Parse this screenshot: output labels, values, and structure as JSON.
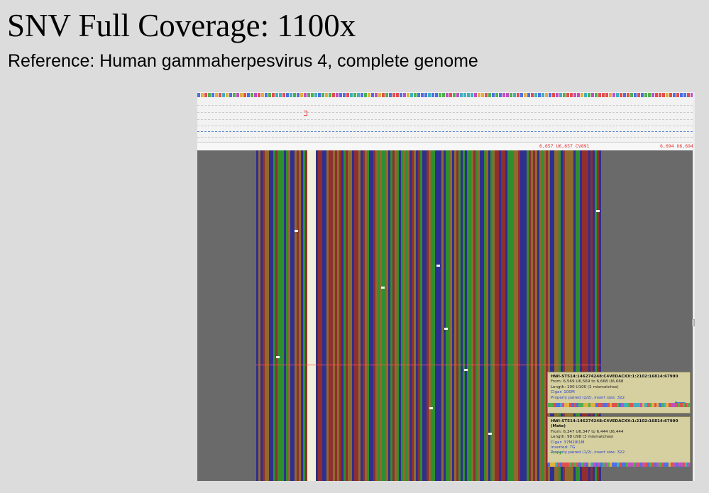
{
  "title": "SNV Full Coverage: 1100x",
  "subtitle": "Reference: Human gammaherpesvirus 4, complete genome",
  "ruler": {
    "label_left": "6,657 U6,657 CV891",
    "label_right": "6,694 U6,694"
  },
  "colors": {
    "A": "#2f8f2f",
    "C": "#2f2f8f",
    "G": "#8f6a2f",
    "T": "#8f2f2f",
    "highlight": "#f0f0d8",
    "mismatch": "#f4f4f4",
    "tooltip_bg": "#d6d0a0"
  },
  "tooltips": [
    {
      "id": "HWI-ST514:146274248:C4VEDACXX:1:2102:16814:67990",
      "lines": [
        "From: 6,569 U6,569 to 6,668 U6,668",
        "Length: 100 U100 (2 mismatches)"
      ],
      "blue_lines": [
        "Cigar: 100M",
        "Properly paired (2/2), insert size: 322"
      ],
      "arrow": "left-arrow-icon"
    },
    {
      "id": "HWI-ST514:146274248:C4VEDACXX:1:2102:16814:67990 (Mate)",
      "lines": [
        "From: 6,347 U6,347 to 6,444 U6,444",
        "Length: 98 U98 (3 mismatches)"
      ],
      "blue_lines": [
        "Cigar: 37M2I61M",
        "Inserted: TG",
        "Properly paired (1/2), insert size: 322"
      ],
      "arrow": "right-arrow-icon"
    }
  ]
}
